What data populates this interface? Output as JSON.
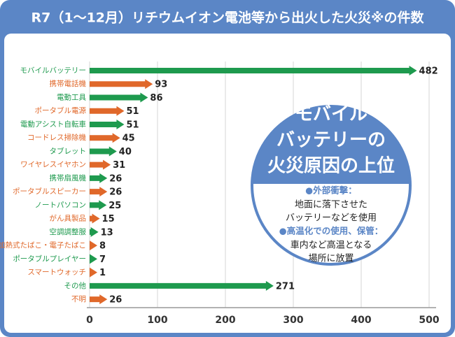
{
  "chart_data": {
    "type": "arrow-bar",
    "title": "R7（1～12月）リチウムイオン電池等から出火した火災※の件数",
    "categories": [
      "モバイルバッテリー",
      "携帯電話機",
      "電動工具",
      "ポータブル電源",
      "電動アシスト自転車",
      "コードレス掃除機",
      "タブレット",
      "ワイヤレスイヤホン",
      "携帯扇風機",
      "ポータブルスピーカー",
      "ノートパソコン",
      "がん具製品",
      "空調調整服",
      "加熱式たばこ・電子たばこ",
      "ポータブルプレイヤー",
      "スマートウォッチ",
      "その他",
      "不明"
    ],
    "values": [
      482,
      93,
      86,
      51,
      51,
      45,
      40,
      31,
      26,
      26,
      25,
      15,
      13,
      8,
      7,
      1,
      271,
      26
    ],
    "colors": [
      "#1e9a4e",
      "#e0682a",
      "#1e9a4e",
      "#e0682a",
      "#1e9a4e",
      "#e0682a",
      "#1e9a4e",
      "#e0682a",
      "#1e9a4e",
      "#e0682a",
      "#1e9a4e",
      "#e0682a",
      "#1e9a4e",
      "#e0682a",
      "#1e9a4e",
      "#e0682a",
      "#1e9a4e",
      "#e0682a"
    ],
    "xlim": [
      0,
      500
    ],
    "xticks": [
      0,
      100,
      200,
      300,
      400,
      500
    ],
    "grid": true,
    "annotation": {
      "heading": [
        "モバイル",
        "バッテリーの",
        "火災原因の上位"
      ],
      "items": [
        {
          "label": "●外部衝撃：",
          "lines": [
            "地面に落下させた",
            "バッテリーなどを使用"
          ]
        },
        {
          "label": "●高温化での使用、保管：",
          "lines": [
            "車内など高温となる",
            "場所に放置"
          ]
        }
      ]
    }
  }
}
